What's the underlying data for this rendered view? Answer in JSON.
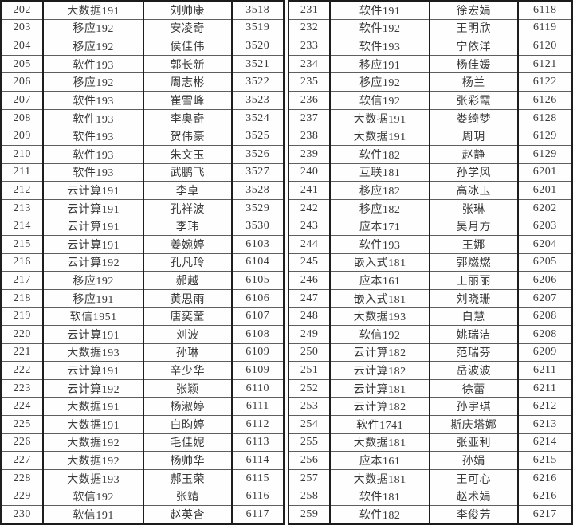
{
  "left": {
    "rows": [
      {
        "no": "202",
        "cls": "大数据191",
        "name": "刘帅康",
        "room": "3518"
      },
      {
        "no": "203",
        "cls": "移应192",
        "name": "安凌奇",
        "room": "3519"
      },
      {
        "no": "204",
        "cls": "移应192",
        "name": "侯佳伟",
        "room": "3520"
      },
      {
        "no": "205",
        "cls": "软件193",
        "name": "郭长新",
        "room": "3521"
      },
      {
        "no": "206",
        "cls": "移应192",
        "name": "周志彬",
        "room": "3522"
      },
      {
        "no": "207",
        "cls": "软件193",
        "name": "崔雪峰",
        "room": "3523"
      },
      {
        "no": "208",
        "cls": "软件193",
        "name": "李奥奇",
        "room": "3524"
      },
      {
        "no": "209",
        "cls": "软件193",
        "name": "贺伟豪",
        "room": "3525"
      },
      {
        "no": "210",
        "cls": "软件193",
        "name": "朱文玉",
        "room": "3526"
      },
      {
        "no": "211",
        "cls": "软件193",
        "name": "武鹏飞",
        "room": "3527"
      },
      {
        "no": "212",
        "cls": "云计算191",
        "name": "李卓",
        "room": "3528"
      },
      {
        "no": "213",
        "cls": "云计算191",
        "name": "孔祥波",
        "room": "3529"
      },
      {
        "no": "214",
        "cls": "云计算191",
        "name": "李玮",
        "room": "3530"
      },
      {
        "no": "215",
        "cls": "云计算191",
        "name": "姜婉婷",
        "room": "6103"
      },
      {
        "no": "216",
        "cls": "云计算192",
        "name": "孔凡玲",
        "room": "6104"
      },
      {
        "no": "217",
        "cls": "移应192",
        "name": "郝越",
        "room": "6105"
      },
      {
        "no": "218",
        "cls": "移应191",
        "name": "黄思雨",
        "room": "6106"
      },
      {
        "no": "219",
        "cls": "软信1951",
        "name": "唐奕莹",
        "room": "6107"
      },
      {
        "no": "220",
        "cls": "云计算191",
        "name": "刘波",
        "room": "6108"
      },
      {
        "no": "221",
        "cls": "大数据193",
        "name": "孙琳",
        "room": "6109"
      },
      {
        "no": "222",
        "cls": "云计算191",
        "name": "辛少华",
        "room": "6109"
      },
      {
        "no": "223",
        "cls": "云计算192",
        "name": "张颖",
        "room": "6110"
      },
      {
        "no": "224",
        "cls": "大数据191",
        "name": "杨淑婷",
        "room": "6111"
      },
      {
        "no": "225",
        "cls": "大数据191",
        "name": "白昀婷",
        "room": "6112"
      },
      {
        "no": "226",
        "cls": "大数据192",
        "name": "毛佳妮",
        "room": "6113"
      },
      {
        "no": "227",
        "cls": "大数据192",
        "name": "杨帅华",
        "room": "6114"
      },
      {
        "no": "228",
        "cls": "大数据193",
        "name": "郝玉荣",
        "room": "6115"
      },
      {
        "no": "229",
        "cls": "软信192",
        "name": "张靖",
        "room": "6116"
      },
      {
        "no": "230",
        "cls": "软信191",
        "name": "赵英含",
        "room": "6117"
      }
    ]
  },
  "right": {
    "rows": [
      {
        "no": "231",
        "cls": "软件191",
        "name": "徐宏娟",
        "room": "6118"
      },
      {
        "no": "232",
        "cls": "软件192",
        "name": "王明欣",
        "room": "6119"
      },
      {
        "no": "233",
        "cls": "软件193",
        "name": "宁依洋",
        "room": "6120"
      },
      {
        "no": "234",
        "cls": "移应191",
        "name": "杨佳媛",
        "room": "6121"
      },
      {
        "no": "235",
        "cls": "移应192",
        "name": "杨兰",
        "room": "6122"
      },
      {
        "no": "236",
        "cls": "软信192",
        "name": "张彩霞",
        "room": "6126"
      },
      {
        "no": "237",
        "cls": "大数据191",
        "name": "娄绮梦",
        "room": "6128"
      },
      {
        "no": "238",
        "cls": "大数据191",
        "name": "周玥",
        "room": "6129"
      },
      {
        "no": "239",
        "cls": "软件182",
        "name": "赵静",
        "room": "6129"
      },
      {
        "no": "240",
        "cls": "互联181",
        "name": "孙学风",
        "room": "6201"
      },
      {
        "no": "241",
        "cls": "移应182",
        "name": "高冰玉",
        "room": "6201"
      },
      {
        "no": "242",
        "cls": "移应182",
        "name": "张琳",
        "room": "6202"
      },
      {
        "no": "243",
        "cls": "应本171",
        "name": "吴月方",
        "room": "6203"
      },
      {
        "no": "244",
        "cls": "软件193",
        "name": "王娜",
        "room": "6204"
      },
      {
        "no": "245",
        "cls": "嵌入式181",
        "name": "郭燃燃",
        "room": "6205"
      },
      {
        "no": "246",
        "cls": "应本161",
        "name": "王丽丽",
        "room": "6206"
      },
      {
        "no": "247",
        "cls": "嵌入式181",
        "name": "刘晓珊",
        "room": "6207"
      },
      {
        "no": "248",
        "cls": "大数据193",
        "name": "白慧",
        "room": "6208"
      },
      {
        "no": "249",
        "cls": "软信192",
        "name": "姚瑞洁",
        "room": "6208"
      },
      {
        "no": "250",
        "cls": "云计算182",
        "name": "范瑞芬",
        "room": "6209"
      },
      {
        "no": "251",
        "cls": "云计算182",
        "name": "岳波波",
        "room": "6211"
      },
      {
        "no": "252",
        "cls": "云计算181",
        "name": "徐蕾",
        "room": "6211"
      },
      {
        "no": "253",
        "cls": "云计算182",
        "name": "孙宇琪",
        "room": "6212"
      },
      {
        "no": "254",
        "cls": "软件1741",
        "name": "斯庆塔娜",
        "room": "6213"
      },
      {
        "no": "255",
        "cls": "大数据181",
        "name": "张亚利",
        "room": "6214"
      },
      {
        "no": "256",
        "cls": "应本161",
        "name": "孙娟",
        "room": "6215"
      },
      {
        "no": "257",
        "cls": "大数据181",
        "name": "王可心",
        "room": "6216"
      },
      {
        "no": "258",
        "cls": "软件181",
        "name": "赵术娟",
        "room": "6216"
      },
      {
        "no": "259",
        "cls": "软件182",
        "name": "李俊芳",
        "room": "6217"
      }
    ]
  },
  "colors": {
    "background": "#fdfdfd",
    "text": "#3a3a3a",
    "grid_vertical": "#1e1e1e",
    "grid_horizontal": "#5f5f5f"
  }
}
